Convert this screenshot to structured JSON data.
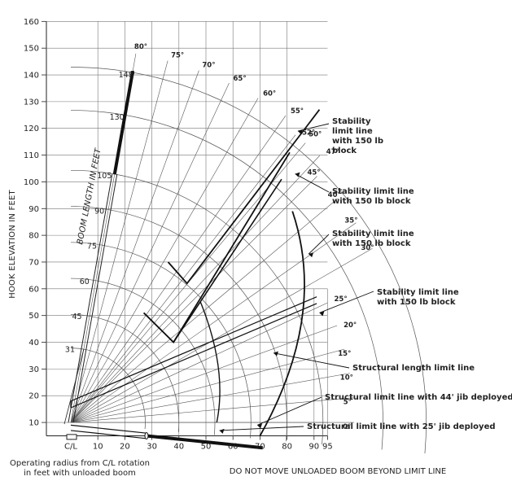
{
  "chart_data": {
    "type": "diagram",
    "ylabel": "HOOK ELEVATION IN FEET",
    "boom_axis_label": "BOOM LENGTH IN FEET",
    "xlabel": "Operating radius from C/L rotation\nin feet with unloaded boom",
    "footer": "DO NOT MOVE UNLOADED BOOM BEYOND LIMIT LINE",
    "x_ticks": [
      "C/L",
      "10",
      "20",
      "30",
      "40",
      "50",
      "60",
      "70",
      "80",
      "90",
      "95"
    ],
    "y_ticks": [
      10,
      20,
      30,
      40,
      50,
      60,
      70,
      80,
      90,
      100,
      110,
      120,
      130,
      140,
      150,
      160
    ],
    "xlim": [
      0,
      95
    ],
    "ylim": [
      5,
      160
    ],
    "boom_lengths": [
      31,
      45,
      60,
      75,
      90,
      105,
      130,
      148
    ],
    "boom_angles": [
      80,
      75,
      70,
      65,
      60,
      55,
      52,
      50,
      47,
      45,
      40,
      35,
      30,
      25,
      20,
      15,
      10,
      5,
      0
    ],
    "callouts": [
      "Stability\nlimit line\nwith 150 lb\nblock",
      "Stability limit line\nwith 150 lb block",
      "Stability limit line\nwith 150 lb block",
      "Stability limit line\nwith 150 lb block",
      "Structural length limit line",
      "Structural limit line with 44' jib deployed",
      "Structural limit line with 25' jib deployed"
    ]
  }
}
